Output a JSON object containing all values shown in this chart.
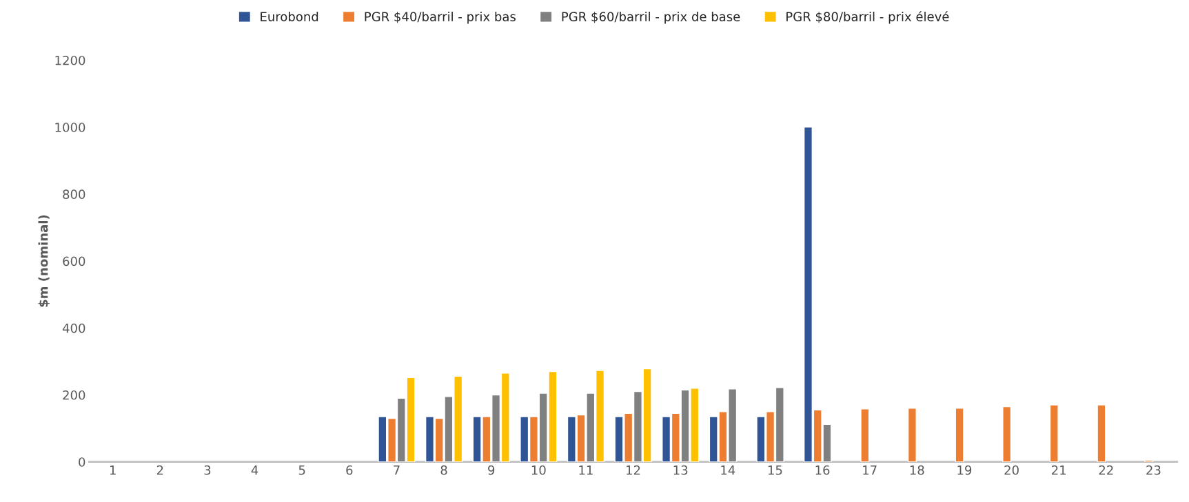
{
  "chart_data": {
    "type": "bar",
    "ylabel": "$m (nominal)",
    "categories": [
      "1",
      "2",
      "3",
      "4",
      "5",
      "6",
      "7",
      "8",
      "9",
      "10",
      "11",
      "12",
      "13",
      "14",
      "15",
      "16",
      "17",
      "18",
      "19",
      "20",
      "21",
      "22",
      "23"
    ],
    "series": [
      {
        "name": "Eurobond",
        "color": "#2f5597",
        "values": [
          null,
          null,
          null,
          null,
          null,
          null,
          135,
          135,
          135,
          135,
          135,
          135,
          135,
          135,
          135,
          1000,
          null,
          null,
          null,
          null,
          null,
          null,
          null
        ]
      },
      {
        "name": "PGR $40/barril - prix bas",
        "color": "#ed7d31",
        "values": [
          null,
          null,
          null,
          null,
          null,
          null,
          130,
          130,
          135,
          135,
          140,
          145,
          145,
          150,
          150,
          155,
          158,
          160,
          160,
          165,
          170,
          170,
          5
        ]
      },
      {
        "name": "PGR $60/barril - prix de base",
        "color": "#808080",
        "values": [
          null,
          null,
          null,
          null,
          null,
          null,
          190,
          195,
          200,
          205,
          205,
          210,
          215,
          218,
          222,
          112,
          null,
          null,
          null,
          null,
          null,
          null,
          null
        ]
      },
      {
        "name": "PGR $80/barril - prix élevé",
        "color": "#ffc000",
        "values": [
          null,
          null,
          null,
          null,
          null,
          null,
          252,
          256,
          265,
          270,
          273,
          278,
          220,
          null,
          null,
          null,
          null,
          null,
          null,
          null,
          null,
          null,
          null
        ]
      }
    ],
    "ylim": [
      0,
      1200
    ],
    "yticks": [
      0,
      200,
      400,
      600,
      800,
      1000,
      1200
    ],
    "grid": false,
    "legend": "top"
  }
}
